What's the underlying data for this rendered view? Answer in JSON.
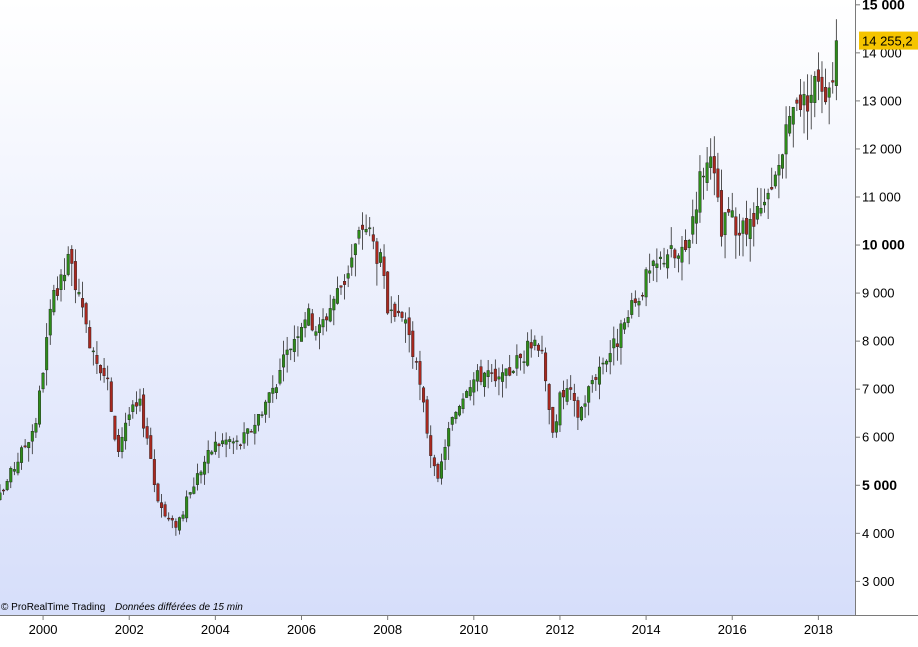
{
  "footer": {
    "copyright": "© ProRealTime Trading",
    "delay_note": "Données différées de 15 min"
  },
  "last_price_label": "14 255,2",
  "colors": {
    "bullish": "#2e8b1a",
    "bearish": "#a8281f",
    "price_tag": "#f5c400",
    "background_top": "#ffffff",
    "background_bottom": "#d6defa"
  },
  "chart_data": {
    "type": "candlestick",
    "frequency": "monthly",
    "x_range": [
      1999.0,
      2018.85
    ],
    "ylim": [
      2300,
      15100
    ],
    "grid": false,
    "x_ticks": [
      "2000",
      "2002",
      "2004",
      "2006",
      "2008",
      "2010",
      "2012",
      "2014",
      "2016",
      "2018"
    ],
    "y_ticks": [
      {
        "value": 3000,
        "label": "3 000",
        "bold": false
      },
      {
        "value": 4000,
        "label": "4 000",
        "bold": false
      },
      {
        "value": 5000,
        "label": "5 000",
        "bold": true
      },
      {
        "value": 6000,
        "label": "6 000",
        "bold": false
      },
      {
        "value": 7000,
        "label": "7 000",
        "bold": false
      },
      {
        "value": 8000,
        "label": "8 000",
        "bold": false
      },
      {
        "value": 9000,
        "label": "9 000",
        "bold": false
      },
      {
        "value": 10000,
        "label": "10 000",
        "bold": true
      },
      {
        "value": 11000,
        "label": "11 000",
        "bold": false
      },
      {
        "value": 12000,
        "label": "12 000",
        "bold": false
      },
      {
        "value": 13000,
        "label": "13 000",
        "bold": false
      },
      {
        "value": 14000,
        "label": "14 000",
        "bold": false
      },
      {
        "value": 15000,
        "label": "15 000",
        "bold": true
      }
    ],
    "last_value": 14255.2,
    "anchors": [
      [
        1999.0,
        4750
      ],
      [
        1999.2,
        5150
      ],
      [
        1999.45,
        5600
      ],
      [
        1999.7,
        6050
      ],
      [
        1999.85,
        6400
      ],
      [
        2000.0,
        7450
      ],
      [
        2000.2,
        8750
      ],
      [
        2000.4,
        9150
      ],
      [
        2000.6,
        9700
      ],
      [
        2000.75,
        9250
      ],
      [
        2000.95,
        8350
      ],
      [
        2001.2,
        7800
      ],
      [
        2001.5,
        7150
      ],
      [
        2001.7,
        5600
      ],
      [
        2001.95,
        6450
      ],
      [
        2002.25,
        6650
      ],
      [
        2002.45,
        5900
      ],
      [
        2002.6,
        4950
      ],
      [
        2002.8,
        4400
      ],
      [
        2003.05,
        4150
      ],
      [
        2003.25,
        4450
      ],
      [
        2003.5,
        5050
      ],
      [
        2003.75,
        5500
      ],
      [
        2004.0,
        5850
      ],
      [
        2004.3,
        5950
      ],
      [
        2004.55,
        5850
      ],
      [
        2004.85,
        6200
      ],
      [
        2005.2,
        6800
      ],
      [
        2005.5,
        7350
      ],
      [
        2005.8,
        8050
      ],
      [
        2006.1,
        8600
      ],
      [
        2006.4,
        8200
      ],
      [
        2006.75,
        8900
      ],
      [
        2007.0,
        9300
      ],
      [
        2007.25,
        9950
      ],
      [
        2007.45,
        10500
      ],
      [
        2007.6,
        10200
      ],
      [
        2007.85,
        9600
      ],
      [
        2008.0,
        8650
      ],
      [
        2008.15,
        8300
      ],
      [
        2008.4,
        8550
      ],
      [
        2008.6,
        7700
      ],
      [
        2008.8,
        6800
      ],
      [
        2009.0,
        5700
      ],
      [
        2009.15,
        4950
      ],
      [
        2009.35,
        5950
      ],
      [
        2009.6,
        6600
      ],
      [
        2009.85,
        7150
      ],
      [
        2010.1,
        7250
      ],
      [
        2010.3,
        7400
      ],
      [
        2010.5,
        7100
      ],
      [
        2010.7,
        7200
      ],
      [
        2010.95,
        7550
      ],
      [
        2011.2,
        7750
      ],
      [
        2011.4,
        8050
      ],
      [
        2011.6,
        7900
      ],
      [
        2011.7,
        6600
      ],
      [
        2011.85,
        6200
      ],
      [
        2012.0,
        6800
      ],
      [
        2012.2,
        7000
      ],
      [
        2012.4,
        6450
      ],
      [
        2012.55,
        6700
      ],
      [
        2012.75,
        7200
      ],
      [
        2013.0,
        7600
      ],
      [
        2013.25,
        7900
      ],
      [
        2013.5,
        8300
      ],
      [
        2013.75,
        8800
      ],
      [
        2014.0,
        9300
      ],
      [
        2014.25,
        9550
      ],
      [
        2014.5,
        9900
      ],
      [
        2014.7,
        9700
      ],
      [
        2014.9,
        9800
      ],
      [
        2015.1,
        10700
      ],
      [
        2015.3,
        11600
      ],
      [
        2015.45,
        11700
      ],
      [
        2015.6,
        11300
      ],
      [
        2015.75,
        10200
      ],
      [
        2015.9,
        10700
      ],
      [
        2016.05,
        10400
      ],
      [
        2016.25,
        10250
      ],
      [
        2016.5,
        10450
      ],
      [
        2016.7,
        10700
      ],
      [
        2016.9,
        11000
      ],
      [
        2017.1,
        11700
      ],
      [
        2017.3,
        12400
      ],
      [
        2017.5,
        13150
      ],
      [
        2017.65,
        12950
      ],
      [
        2017.85,
        13200
      ],
      [
        2018.0,
        13600
      ],
      [
        2018.15,
        13250
      ],
      [
        2018.3,
        13450
      ],
      [
        2018.45,
        14255.2
      ]
    ]
  }
}
